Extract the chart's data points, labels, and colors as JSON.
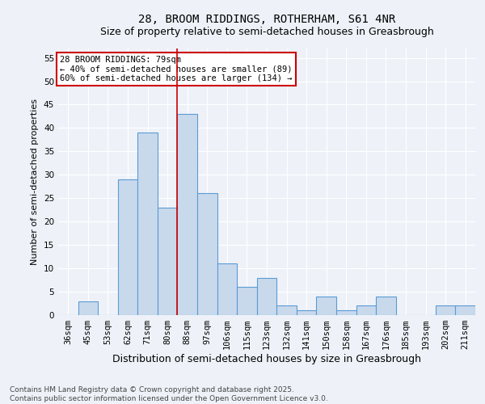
{
  "title1": "28, BROOM RIDDINGS, ROTHERHAM, S61 4NR",
  "title2": "Size of property relative to semi-detached houses in Greasbrough",
  "xlabel": "Distribution of semi-detached houses by size in Greasbrough",
  "ylabel": "Number of semi-detached properties",
  "categories": [
    "36sqm",
    "45sqm",
    "53sqm",
    "62sqm",
    "71sqm",
    "80sqm",
    "88sqm",
    "97sqm",
    "106sqm",
    "115sqm",
    "123sqm",
    "132sqm",
    "141sqm",
    "150sqm",
    "158sqm",
    "167sqm",
    "176sqm",
    "185sqm",
    "193sqm",
    "202sqm",
    "211sqm"
  ],
  "values": [
    0,
    3,
    0,
    29,
    39,
    23,
    43,
    26,
    11,
    6,
    8,
    2,
    1,
    4,
    1,
    2,
    4,
    0,
    0,
    2,
    2
  ],
  "bar_color": "#c9d9ec",
  "bar_edge_color": "#5b9bd5",
  "bar_edge_width": 0.8,
  "red_line_x": 5.5,
  "annotation_title": "28 BROOM RIDDINGS: 79sqm",
  "annotation_line1": "← 40% of semi-detached houses are smaller (89)",
  "annotation_line2": "60% of semi-detached houses are larger (134) →",
  "annotation_box_color": "#ffffff",
  "annotation_border_color": "#cc0000",
  "red_line_color": "#cc0000",
  "ylim": [
    0,
    57
  ],
  "yticks": [
    0,
    5,
    10,
    15,
    20,
    25,
    30,
    35,
    40,
    45,
    50,
    55
  ],
  "footer": "Contains HM Land Registry data © Crown copyright and database right 2025.\nContains public sector information licensed under the Open Government Licence v3.0.",
  "title1_fontsize": 10,
  "title2_fontsize": 9,
  "xlabel_fontsize": 9,
  "ylabel_fontsize": 8,
  "tick_fontsize": 7.5,
  "footer_fontsize": 6.5,
  "annotation_fontsize": 7.5,
  "background_color": "#eef2f8",
  "grid_color": "#ffffff"
}
